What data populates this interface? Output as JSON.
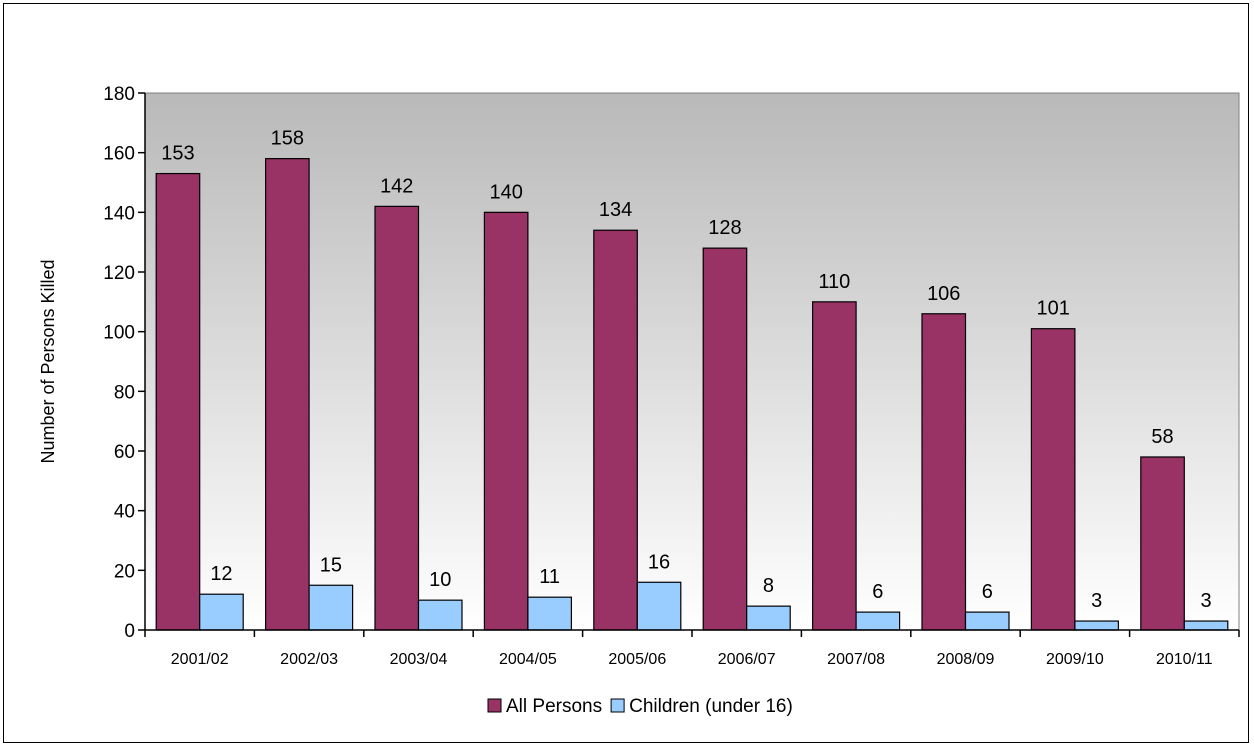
{
  "chart_data": {
    "type": "bar",
    "title": "",
    "xlabel": "",
    "ylabel": "Number of Persons Killed",
    "ylim": [
      0,
      180
    ],
    "yticks": [
      0,
      20,
      40,
      60,
      80,
      100,
      120,
      140,
      160,
      180
    ],
    "grid": false,
    "legend_position": "bottom",
    "categories": [
      "2001/02",
      "2002/03",
      "2003/04",
      "2004/05",
      "2005/06",
      "2006/07",
      "2007/08",
      "2008/09",
      "2009/10",
      "2010/11"
    ],
    "series": [
      {
        "name": "All Persons",
        "color": "#993366",
        "values": [
          153,
          158,
          142,
          140,
          134,
          128,
          110,
          106,
          101,
          58
        ]
      },
      {
        "name": "Children (under 16)",
        "color": "#99CCFF",
        "values": [
          12,
          15,
          10,
          11,
          16,
          8,
          6,
          6,
          3,
          3
        ]
      }
    ],
    "plot_background": {
      "gradient_top": "#b9b9b9",
      "gradient_bottom": "#ffffff"
    }
  }
}
